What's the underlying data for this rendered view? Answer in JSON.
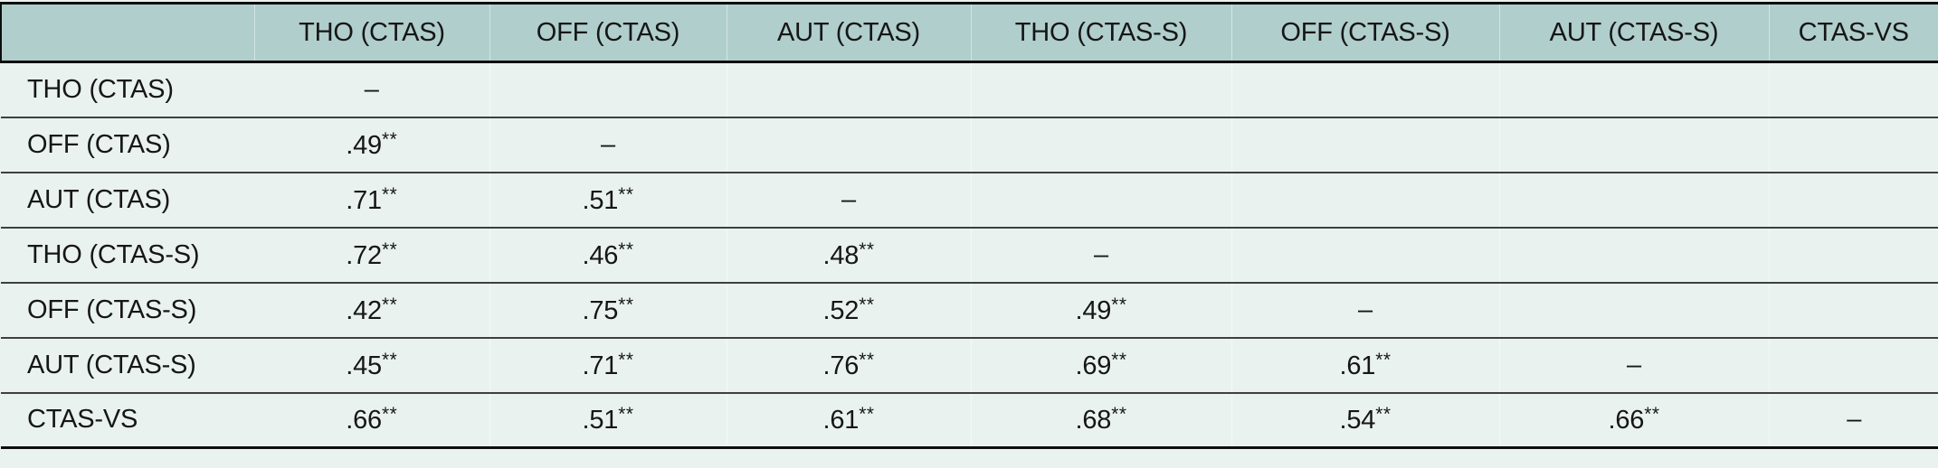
{
  "chart_data": {
    "type": "table",
    "description": "Lower-triangular correlation matrix",
    "corner_header": "",
    "columns": [
      "THO (CTAS)",
      "OFF (CTAS)",
      "AUT (CTAS)",
      "THO (CTAS-S)",
      "OFF (CTAS-S)",
      "AUT (CTAS-S)",
      "CTAS-VS"
    ],
    "rows": [
      {
        "label": "THO (CTAS)",
        "cells": [
          "–",
          "",
          "",
          "",
          "",
          "",
          ""
        ]
      },
      {
        "label": "OFF (CTAS)",
        "cells": [
          ".49**",
          "–",
          "",
          "",
          "",
          "",
          ""
        ]
      },
      {
        "label": "AUT (CTAS)",
        "cells": [
          ".71**",
          ".51**",
          "–",
          "",
          "",
          "",
          ""
        ]
      },
      {
        "label": "THO (CTAS-S)",
        "cells": [
          ".72**",
          ".46**",
          ".48**",
          "–",
          "",
          "",
          ""
        ]
      },
      {
        "label": "OFF (CTAS-S)",
        "cells": [
          ".42**",
          ".75**",
          ".52**",
          ".49**",
          "–",
          "",
          ""
        ]
      },
      {
        "label": "AUT (CTAS-S)",
        "cells": [
          ".45**",
          ".71**",
          ".76**",
          ".69**",
          ".61**",
          "–",
          ""
        ]
      },
      {
        "label": "CTAS-VS",
        "cells": [
          ".66**",
          ".51**",
          ".61**",
          ".68**",
          ".54**",
          ".66**",
          "–"
        ]
      }
    ],
    "diagonal_marker": "–",
    "significance_marker": "**"
  },
  "colors": {
    "header_bg": "#b0cecc",
    "row_bg": "#eaf2f0",
    "thick_border": "#0e0e0e",
    "row_line": "#3f3f3f",
    "text": "#161616"
  }
}
